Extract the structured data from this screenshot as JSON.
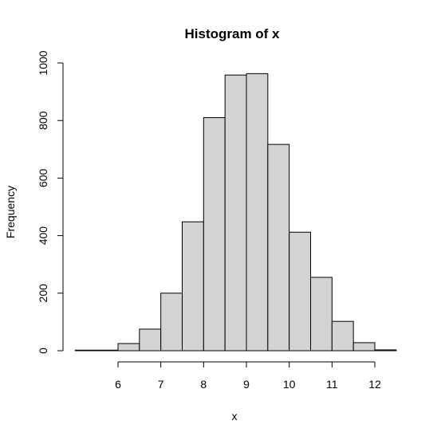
{
  "chart_data": {
    "type": "bar",
    "title": "Histogram of x",
    "xlabel": "x",
    "ylabel": "Frequency",
    "bins": [
      [
        5.0,
        5.5
      ],
      [
        5.5,
        6.0
      ],
      [
        6.0,
        6.5
      ],
      [
        6.5,
        7.0
      ],
      [
        7.0,
        7.5
      ],
      [
        7.5,
        8.0
      ],
      [
        8.0,
        8.5
      ],
      [
        8.5,
        9.0
      ],
      [
        9.0,
        9.5
      ],
      [
        9.5,
        10.0
      ],
      [
        10.0,
        10.5
      ],
      [
        10.5,
        11.0
      ],
      [
        11.0,
        11.5
      ],
      [
        11.5,
        12.0
      ],
      [
        12.0,
        12.5
      ]
    ],
    "values": [
      2,
      2,
      25,
      75,
      200,
      448,
      810,
      958,
      963,
      717,
      412,
      255,
      102,
      28,
      3
    ],
    "xlim": [
      5.0,
      12.5
    ],
    "ylim": [
      0,
      1000
    ],
    "x_ticks": [
      6,
      7,
      8,
      9,
      10,
      11,
      12
    ],
    "y_ticks": [
      0,
      200,
      400,
      600,
      800,
      1000
    ],
    "colors": {
      "bar_fill": "#d3d3d3",
      "bar_stroke": "#000000"
    },
    "grid": false,
    "legend": "none"
  }
}
